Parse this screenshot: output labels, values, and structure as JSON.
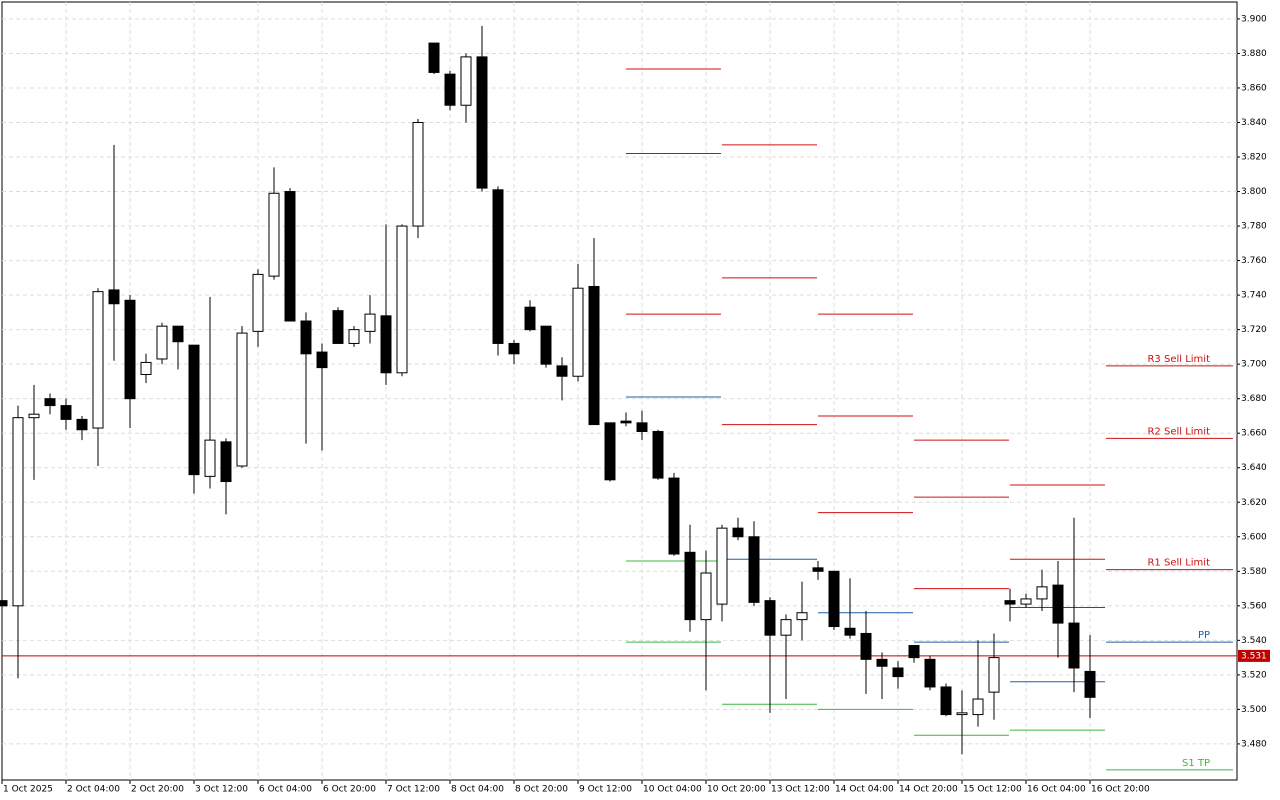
{
  "chart_data": {
    "type": "candlestick",
    "categories": [
      "1 Oct 2025",
      null,
      null,
      null,
      "2 Oct 04:00",
      null,
      null,
      null,
      "2 Oct 20:00",
      null,
      null,
      null,
      "3 Oct 12:00",
      null,
      null,
      null,
      "6 Oct 04:00",
      null,
      null,
      null,
      "6 Oct 20:00",
      null,
      null,
      null,
      "7 Oct 12:00",
      null,
      null,
      null,
      "8 Oct 04:00",
      null,
      null,
      null,
      "8 Oct 20:00",
      null,
      null,
      null,
      "9 Oct 12:00",
      null,
      null,
      null,
      "10 Oct 04:00",
      null,
      null,
      null,
      "10 Oct 20:00",
      null,
      null,
      null,
      "13 Oct 12:00",
      null,
      null,
      null,
      "14 Oct 04:00",
      null,
      null,
      null,
      "14 Oct 20:00",
      null,
      null,
      null,
      "15 Oct 12:00",
      null,
      null,
      null,
      "16 Oct 04:00",
      null,
      null,
      null,
      "16 Oct 20:00"
    ],
    "open": [
      3.563,
      3.56,
      3.669,
      3.68,
      3.676,
      3.668,
      3.663,
      3.743,
      3.737,
      3.694,
      3.703,
      3.722,
      3.711,
      3.635,
      3.655,
      3.641,
      3.719,
      3.751,
      3.8,
      3.725,
      3.707,
      3.731,
      3.712,
      3.719,
      3.728,
      3.695,
      3.78,
      3.886,
      3.868,
      3.85,
      3.878,
      3.801,
      3.712,
      3.733,
      3.722,
      3.699,
      3.693,
      3.745,
      3.666,
      3.667,
      3.666,
      3.661,
      3.634,
      3.591,
      3.552,
      3.561,
      3.605,
      3.6,
      3.563,
      3.543,
      3.552,
      3.582,
      3.58,
      3.547,
      3.544,
      3.529,
      3.524,
      3.537,
      3.529,
      3.513,
      3.497,
      3.497,
      3.51,
      3.563,
      3.561,
      3.564,
      3.572,
      3.55,
      3.522
    ],
    "high": [
      3.563,
      3.676,
      3.688,
      3.683,
      3.68,
      3.67,
      3.744,
      3.827,
      3.74,
      3.706,
      3.724,
      3.722,
      3.711,
      3.739,
      3.657,
      3.722,
      3.755,
      3.814,
      3.802,
      3.73,
      3.712,
      3.733,
      3.722,
      3.74,
      3.781,
      3.781,
      3.842,
      3.886,
      3.87,
      3.88,
      3.896,
      3.803,
      3.714,
      3.737,
      3.722,
      3.704,
      3.758,
      3.773,
      3.666,
      3.672,
      3.673,
      3.662,
      3.637,
      3.607,
      3.592,
      3.607,
      3.611,
      3.609,
      3.565,
      3.555,
      3.574,
      3.586,
      3.58,
      3.576,
      3.557,
      3.533,
      3.528,
      3.537,
      3.531,
      3.515,
      3.511,
      3.54,
      3.544,
      3.57,
      3.567,
      3.581,
      3.586,
      3.611,
      3.543
    ],
    "low": [
      3.559,
      3.518,
      3.633,
      3.671,
      3.662,
      3.656,
      3.641,
      3.702,
      3.663,
      3.689,
      3.7,
      3.697,
      3.625,
      3.628,
      3.613,
      3.64,
      3.71,
      3.749,
      3.725,
      3.654,
      3.65,
      3.712,
      3.71,
      3.712,
      3.688,
      3.693,
      3.773,
      3.868,
      3.847,
      3.84,
      3.8,
      3.705,
      3.7,
      3.719,
      3.698,
      3.679,
      3.69,
      3.665,
      3.632,
      3.664,
      3.656,
      3.633,
      3.589,
      3.545,
      3.511,
      3.551,
      3.598,
      3.56,
      3.498,
      3.506,
      3.54,
      3.575,
      3.546,
      3.541,
      3.509,
      3.506,
      3.512,
      3.527,
      3.511,
      3.496,
      3.474,
      3.49,
      3.494,
      3.551,
      3.559,
      3.557,
      3.53,
      3.51,
      3.495
    ],
    "close": [
      3.56,
      3.669,
      3.671,
      3.676,
      3.668,
      3.662,
      3.742,
      3.735,
      3.68,
      3.701,
      3.722,
      3.713,
      3.636,
      3.656,
      3.632,
      3.718,
      3.752,
      3.799,
      3.725,
      3.706,
      3.698,
      3.712,
      3.72,
      3.729,
      3.695,
      3.78,
      3.84,
      3.869,
      3.85,
      3.878,
      3.802,
      3.712,
      3.706,
      3.72,
      3.7,
      3.693,
      3.744,
      3.665,
      3.633,
      3.666,
      3.661,
      3.634,
      3.59,
      3.552,
      3.579,
      3.605,
      3.6,
      3.562,
      3.543,
      3.552,
      3.556,
      3.58,
      3.548,
      3.543,
      3.529,
      3.525,
      3.519,
      3.53,
      3.513,
      3.497,
      3.498,
      3.506,
      3.53,
      3.561,
      3.564,
      3.571,
      3.55,
      3.524,
      3.507
    ],
    "ylim": [
      3.4591,
      3.9098
    ],
    "yticks": [
      {
        "value": 3.48,
        "label": "3.480"
      },
      {
        "value": 3.5,
        "label": "3.500"
      },
      {
        "value": 3.52,
        "label": "3.520"
      },
      {
        "value": 3.54,
        "label": "3.540"
      },
      {
        "value": 3.56,
        "label": "3.560"
      },
      {
        "value": 3.58,
        "label": "3.580"
      },
      {
        "value": 3.6,
        "label": "3.600"
      },
      {
        "value": 3.62,
        "label": "3.620"
      },
      {
        "value": 3.64,
        "label": "3.640"
      },
      {
        "value": 3.66,
        "label": "3.660"
      },
      {
        "value": 3.68,
        "label": "3.680"
      },
      {
        "value": 3.7,
        "label": "3.700"
      },
      {
        "value": 3.72,
        "label": "3.720"
      },
      {
        "value": 3.74,
        "label": "3.740"
      },
      {
        "value": 3.76,
        "label": "3.760"
      },
      {
        "value": 3.78,
        "label": "3.780"
      },
      {
        "value": 3.8,
        "label": "3.800"
      },
      {
        "value": 3.82,
        "label": "3.820"
      },
      {
        "value": 3.84,
        "label": "3.840"
      },
      {
        "value": 3.86,
        "label": "3.860"
      },
      {
        "value": 3.88,
        "label": "3.880"
      },
      {
        "value": 3.9,
        "label": "3.900"
      }
    ],
    "grid": true,
    "current_price": 3.531,
    "current_price_color": "#c00000",
    "pivot_blocks": [
      {
        "levels": [
          {
            "value": 3.871,
            "color": "#d01010"
          },
          {
            "value": 3.822,
            "color": "#d01010"
          },
          {
            "value": 3.729,
            "color": "#d01010"
          },
          {
            "value": 3.681,
            "color": "#1f5fa8"
          },
          {
            "value": 3.586,
            "color": "#3cb83c"
          },
          {
            "value": 3.539,
            "color": "#3cb83c"
          }
        ]
      },
      {
        "levels": [
          {
            "value": 3.827,
            "color": "#d01010"
          },
          {
            "value": 3.75,
            "color": "#d01010"
          },
          {
            "value": 3.665,
            "color": "#d01010"
          },
          {
            "value": 3.587,
            "color": "#1f5fa8"
          },
          {
            "value": 3.503,
            "color": "#3cb83c"
          }
        ]
      },
      {
        "levels": [
          {
            "value": 3.729,
            "color": "#d01010"
          },
          {
            "value": 3.67,
            "color": "#d01010"
          },
          {
            "value": 3.614,
            "color": "#d01010"
          },
          {
            "value": 3.556,
            "color": "#1f5fa8"
          },
          {
            "value": 3.5,
            "color": "#3cb83c"
          }
        ]
      },
      {
        "levels": [
          {
            "value": 3.656,
            "color": "#d01010"
          },
          {
            "value": 3.623,
            "color": "#d01010"
          },
          {
            "value": 3.57,
            "color": "#d01010"
          },
          {
            "value": 3.539,
            "color": "#1f5fa8"
          },
          {
            "value": 3.485,
            "color": "#3cb83c"
          }
        ]
      },
      {
        "levels": [
          {
            "value": 3.63,
            "color": "#d01010"
          },
          {
            "value": 3.587,
            "color": "#d01010"
          },
          {
            "value": 3.559,
            "color": "#d01010"
          },
          {
            "value": 3.516,
            "color": "#1f5fa8"
          },
          {
            "value": 3.488,
            "color": "#3cb83c"
          }
        ]
      }
    ],
    "order_levels": [
      {
        "label": "R3 Sell Limit",
        "value": 3.699,
        "color": "#d01010"
      },
      {
        "label": "R2 Sell Limit",
        "value": 3.657,
        "color": "#d01010"
      },
      {
        "label": "R1 Sell Limit",
        "value": 3.581,
        "color": "#d01010"
      },
      {
        "label": "PP",
        "value": 3.539,
        "color": "#1f5fa8"
      },
      {
        "label": "S1 TP",
        "value": 3.465,
        "color": "#3cb83c"
      }
    ]
  }
}
